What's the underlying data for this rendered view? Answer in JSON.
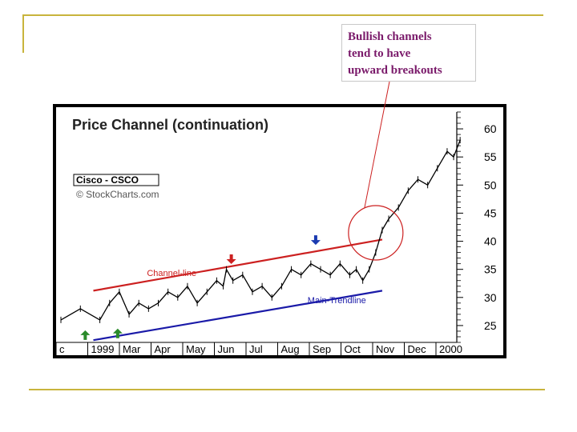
{
  "callout": {
    "lines": [
      "Bullish channels",
      "tend to have",
      "upward breakouts"
    ]
  },
  "chart_data": {
    "type": "line",
    "title": "Price Channel (continuation)",
    "ticker_label": "Cisco - CSCO",
    "source_label": "© StockCharts.com",
    "x_tick_labels": [
      "c",
      "1999",
      "Mar",
      "Apr",
      "May",
      "Jun",
      "Jul",
      "Aug",
      "Sep",
      "Oct",
      "Nov",
      "Dec",
      "2000"
    ],
    "y_tick_labels": [
      "60",
      "55",
      "50",
      "45",
      "40",
      "35",
      "30",
      "25"
    ],
    "y_ticks": [
      60,
      55,
      50,
      45,
      40,
      35,
      30,
      25
    ],
    "ylim": [
      22,
      63
    ],
    "annotations": {
      "channel_line": "Channel-line",
      "main_trendline": "Main-Trendline"
    },
    "series": [
      {
        "name": "CSCO",
        "x": [
          0,
          0.6,
          1.2,
          1.5,
          1.8,
          2.1,
          2.4,
          2.7,
          3.0,
          3.3,
          3.6,
          3.9,
          4.2,
          4.5,
          4.8,
          5.0,
          5.1,
          5.3,
          5.6,
          5.9,
          6.2,
          6.5,
          6.8,
          7.1,
          7.4,
          7.7,
          8.0,
          8.3,
          8.6,
          8.9,
          9.1,
          9.3,
          9.5,
          9.7,
          9.9,
          10.1,
          10.4,
          10.7,
          11.0,
          11.3,
          11.6,
          11.9,
          12.1,
          12.3
        ],
        "y": [
          26,
          28,
          26,
          29,
          31,
          27,
          29,
          28,
          29,
          31,
          30,
          32,
          29,
          31,
          33,
          32,
          35,
          33,
          34,
          31,
          32,
          30,
          32,
          35,
          34,
          36,
          35,
          34,
          36,
          34,
          35,
          33,
          35,
          38,
          42,
          44,
          46,
          49,
          51,
          50,
          53,
          56,
          55,
          58
        ]
      }
    ],
    "channel_line": {
      "start": [
        1.0,
        31.2
      ],
      "end": [
        9.9,
        40.3
      ]
    },
    "main_trendline": {
      "start": [
        1.0,
        22.4
      ],
      "end": [
        9.9,
        31.2
      ]
    },
    "arrows": [
      {
        "direction": "up",
        "color": "#2a8a2a",
        "x": 0.75,
        "y": 23.3
      },
      {
        "direction": "up",
        "color": "#2a8a2a",
        "x": 1.75,
        "y": 23.6
      },
      {
        "direction": "down",
        "color": "#cc2020",
        "x": 5.25,
        "y": 36.8
      },
      {
        "direction": "down",
        "color": "#1a3ab0",
        "x": 7.85,
        "y": 40.2
      }
    ],
    "breakout_circle": {
      "x": 9.7,
      "y": 41.5
    },
    "colors": {
      "price": "#000000",
      "channel": "#cc2020",
      "trend": "#1a1aa8",
      "callout_text": "#7a1a6a",
      "circle": "#cc2020"
    }
  }
}
